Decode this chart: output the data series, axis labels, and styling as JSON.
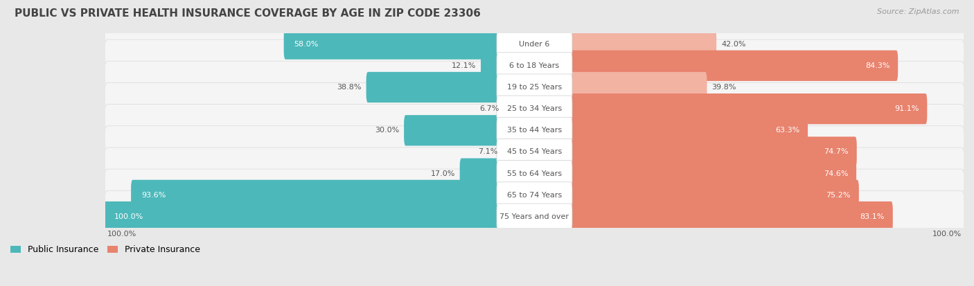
{
  "title": "PUBLIC VS PRIVATE HEALTH INSURANCE COVERAGE BY AGE IN ZIP CODE 23306",
  "source": "Source: ZipAtlas.com",
  "categories": [
    "Under 6",
    "6 to 18 Years",
    "19 to 25 Years",
    "25 to 34 Years",
    "35 to 44 Years",
    "45 to 54 Years",
    "55 to 64 Years",
    "65 to 74 Years",
    "75 Years and over"
  ],
  "public_values": [
    58.0,
    12.1,
    38.8,
    6.7,
    30.0,
    7.1,
    17.0,
    93.6,
    100.0
  ],
  "private_values": [
    42.0,
    84.3,
    39.8,
    91.1,
    63.3,
    74.7,
    74.6,
    75.2,
    83.1
  ],
  "public_color": "#4db8ba",
  "private_color": "#e8836e",
  "private_light_color": "#f2b3a2",
  "background_color": "#e8e8e8",
  "row_bg_color": "#f5f5f5",
  "row_edge_color": "#d8d8d8",
  "title_color": "#444444",
  "source_color": "#999999",
  "label_dark_color": "#555555",
  "label_white_color": "#ffffff",
  "title_fontsize": 11,
  "label_fontsize": 8,
  "legend_fontsize": 9,
  "source_fontsize": 8,
  "max_value": 100.0
}
